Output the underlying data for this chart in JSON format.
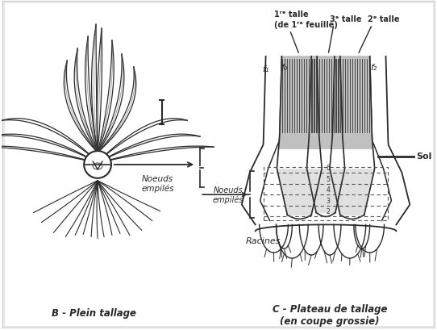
{
  "fig_width": 5.42,
  "fig_height": 4.1,
  "dpi": 100,
  "bg_color": "#f5f5f5",
  "title_B": "B - Plein tallage",
  "title_C": "C - Plateau de tallage\n(en coupe grossie)",
  "label_noeuds": "Noeuds\nempilés",
  "label_racines": "Racines",
  "label_sol": "Sol",
  "label_1re_talle_line1": "1ʳᵉ talle",
  "label_1re_talle_line2": "(de 1ʳᵉ feuille)",
  "label_3e_talle": "3ᵉ talle",
  "label_2e_talle": "2ᵉ talle",
  "label_f1": "f₁",
  "label_f0": "f₀",
  "label_f2": "f₂"
}
